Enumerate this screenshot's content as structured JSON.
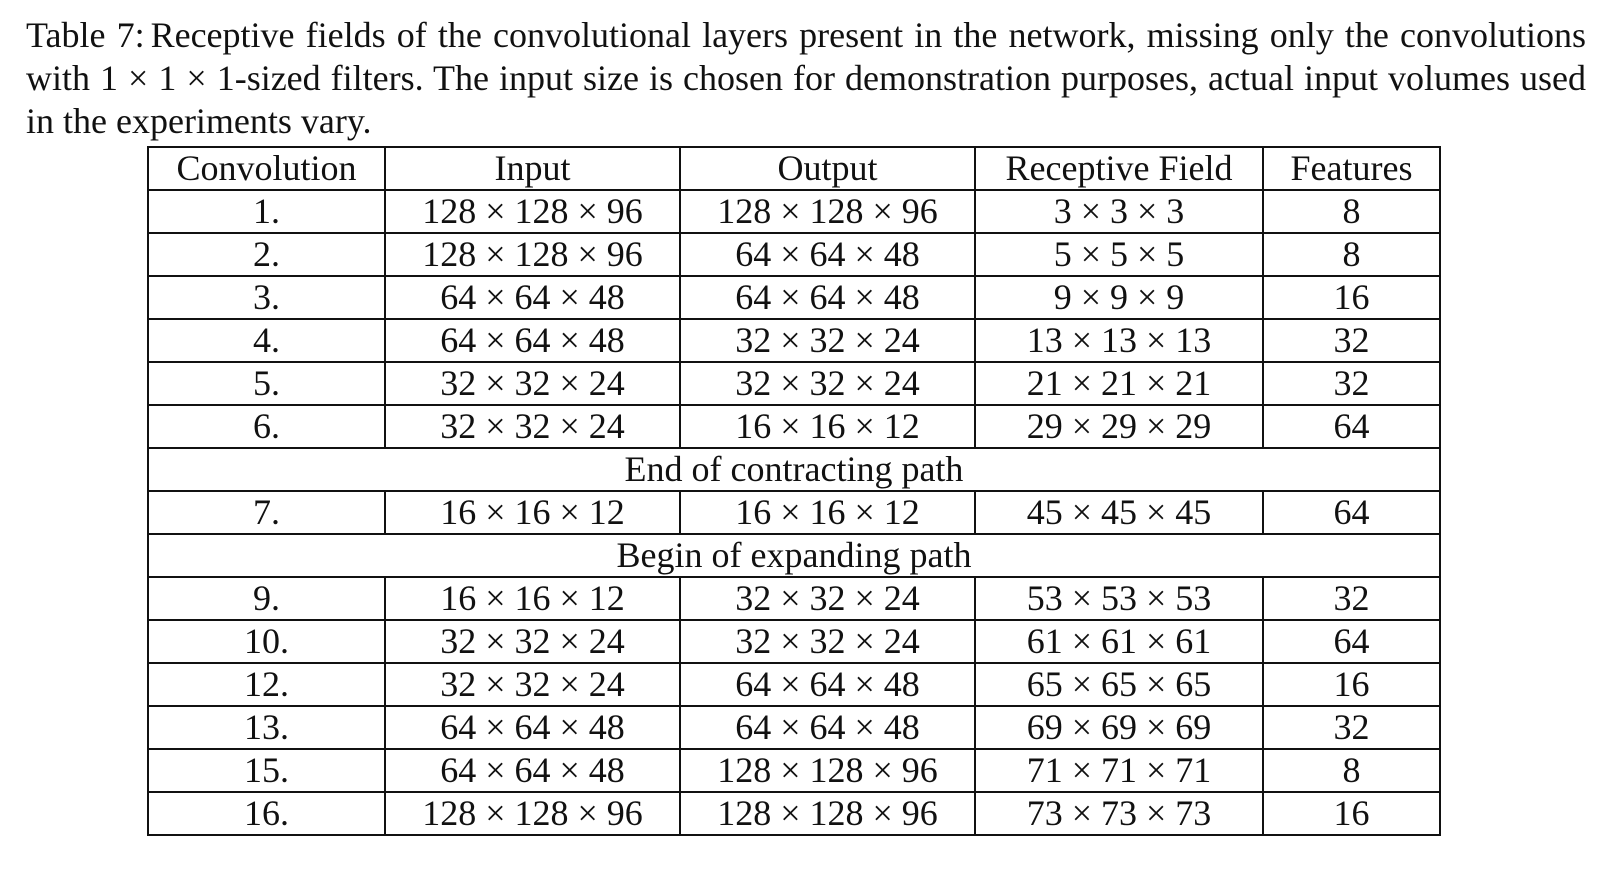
{
  "caption": {
    "label": "Table 7:",
    "text": "Receptive fields of the convolutional layers present in the network, missing only the convolutions with 1 × 1 × 1-sized filters. The input size is chosen for demonstration purposes, actual input volumes used in the experiments vary."
  },
  "table": {
    "headers": [
      "Convolution",
      "Input",
      "Output",
      "Receptive Field",
      "Features"
    ],
    "block1": [
      [
        "1.",
        "128 × 128 × 96",
        "128 × 128 × 96",
        "3 × 3 × 3",
        "8"
      ],
      [
        "2.",
        "128 × 128 × 96",
        "64 × 64 × 48",
        "5 × 5 × 5",
        "8"
      ],
      [
        "3.",
        "64 × 64 × 48",
        "64 × 64 × 48",
        "9 × 9 × 9",
        "16"
      ],
      [
        "4.",
        "64 × 64 × 48",
        "32 × 32 × 24",
        "13 × 13 × 13",
        "32"
      ],
      [
        "5.",
        "32 × 32 × 24",
        "32 × 32 × 24",
        "21 × 21 × 21",
        "32"
      ],
      [
        "6.",
        "32 × 32 × 24",
        "16 × 16 × 12",
        "29 × 29 × 29",
        "64"
      ]
    ],
    "section1": "End of contracting path",
    "block2": [
      [
        "7.",
        "16 × 16 × 12",
        "16 × 16 × 12",
        "45 × 45 × 45",
        "64"
      ]
    ],
    "section2": "Begin of expanding path",
    "block3": [
      [
        "9.",
        "16 × 16 × 12",
        "32 × 32 × 24",
        "53 × 53 × 53",
        "32"
      ],
      [
        "10.",
        "32 × 32 × 24",
        "32 × 32 × 24",
        "61 × 61 × 61",
        "64"
      ],
      [
        "12.",
        "32 × 32 × 24",
        "64 × 64 × 48",
        "65 × 65 × 65",
        "16"
      ],
      [
        "13.",
        "64 × 64 × 48",
        "64 × 64 × 48",
        "69 × 69 × 69",
        "32"
      ],
      [
        "15.",
        "64 × 64 × 48",
        "128 × 128 × 96",
        "71 × 71 × 71",
        "8"
      ],
      [
        "16.",
        "128 × 128 × 96",
        "128 × 128 × 96",
        "73 × 73 × 73",
        "16"
      ]
    ]
  }
}
